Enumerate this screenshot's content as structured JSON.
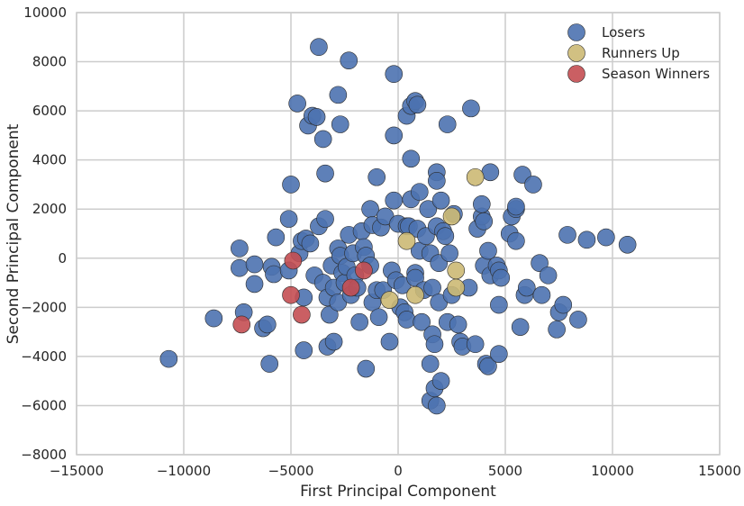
{
  "chart_data": {
    "type": "scatter",
    "xlabel": "First Principal Component",
    "ylabel": "Second Principal Component",
    "xlim": [
      -15000,
      15000
    ],
    "ylim": [
      -8000,
      10000
    ],
    "xticks": [
      -15000,
      -10000,
      -5000,
      0,
      5000,
      10000,
      15000
    ],
    "yticks": [
      -8000,
      -6000,
      -4000,
      -2000,
      0,
      2000,
      4000,
      6000,
      8000,
      10000
    ],
    "grid": true,
    "legend_position": "top-right",
    "series": [
      {
        "name": "Losers",
        "color": "#4c72b0",
        "points": [
          [
            -10700,
            -4100
          ],
          [
            -8600,
            -2450
          ],
          [
            -7400,
            400
          ],
          [
            -7400,
            -400
          ],
          [
            -7200,
            -2200
          ],
          [
            -6700,
            -250
          ],
          [
            -6700,
            -1050
          ],
          [
            -6300,
            -2850
          ],
          [
            -6100,
            -2700
          ],
          [
            -6000,
            -4300
          ],
          [
            -5900,
            -350
          ],
          [
            -5800,
            -650
          ],
          [
            -5700,
            850
          ],
          [
            -5100,
            1600
          ],
          [
            -5100,
            -500
          ],
          [
            -5000,
            3000
          ],
          [
            -4700,
            6300
          ],
          [
            -4600,
            200
          ],
          [
            -4500,
            700
          ],
          [
            -4400,
            -1600
          ],
          [
            -4400,
            -3750
          ],
          [
            -4300,
            800
          ],
          [
            -4200,
            5400
          ],
          [
            -4100,
            600
          ],
          [
            -4000,
            5800
          ],
          [
            -3900,
            -700
          ],
          [
            -3800,
            5750
          ],
          [
            -3700,
            8600
          ],
          [
            -3700,
            1300
          ],
          [
            -3500,
            4850
          ],
          [
            -3500,
            -1000
          ],
          [
            -3400,
            3450
          ],
          [
            -3400,
            1600
          ],
          [
            -3300,
            -3600
          ],
          [
            -3300,
            -1600
          ],
          [
            -3200,
            -2300
          ],
          [
            -3100,
            -300
          ],
          [
            -3000,
            -3400
          ],
          [
            -3000,
            -1200
          ],
          [
            -2800,
            -1800
          ],
          [
            -2800,
            6650
          ],
          [
            -2800,
            400
          ],
          [
            -2700,
            100
          ],
          [
            -2700,
            5450
          ],
          [
            -2600,
            -600
          ],
          [
            -2500,
            -1000
          ],
          [
            -2400,
            -350
          ],
          [
            -2300,
            8050
          ],
          [
            -2300,
            950
          ],
          [
            -2200,
            -1500
          ],
          [
            -2100,
            200
          ],
          [
            -2000,
            -700
          ],
          [
            -1900,
            -1200
          ],
          [
            -1800,
            -2600
          ],
          [
            -1700,
            1100
          ],
          [
            -1600,
            450
          ],
          [
            -1500,
            -4500
          ],
          [
            -1500,
            100
          ],
          [
            -1300,
            2000
          ],
          [
            -1300,
            -300
          ],
          [
            -1200,
            1350
          ],
          [
            -1200,
            -1800
          ],
          [
            -1000,
            3300
          ],
          [
            -1000,
            -1300
          ],
          [
            -900,
            -2400
          ],
          [
            -800,
            1250
          ],
          [
            -700,
            -1300
          ],
          [
            -600,
            1700
          ],
          [
            -400,
            -3400
          ],
          [
            -300,
            -500
          ],
          [
            -200,
            5000
          ],
          [
            -200,
            2350
          ],
          [
            -200,
            7500
          ],
          [
            -100,
            -900
          ],
          [
            0,
            1400
          ],
          [
            100,
            -2000
          ],
          [
            200,
            -1100
          ],
          [
            300,
            -2200
          ],
          [
            400,
            1300
          ],
          [
            400,
            -2500
          ],
          [
            400,
            5800
          ],
          [
            500,
            1300
          ],
          [
            600,
            2400
          ],
          [
            600,
            6200
          ],
          [
            600,
            4050
          ],
          [
            800,
            6400
          ],
          [
            800,
            -600
          ],
          [
            800,
            -800
          ],
          [
            900,
            6250
          ],
          [
            900,
            1200
          ],
          [
            1000,
            2700
          ],
          [
            1000,
            300
          ],
          [
            1100,
            -2600
          ],
          [
            1200,
            -1300
          ],
          [
            1300,
            900
          ],
          [
            1400,
            2000
          ],
          [
            1500,
            200
          ],
          [
            1500,
            -4300
          ],
          [
            1500,
            -5800
          ],
          [
            1600,
            -1200
          ],
          [
            1600,
            -3100
          ],
          [
            1700,
            -5300
          ],
          [
            1700,
            -3500
          ],
          [
            1800,
            3500
          ],
          [
            1800,
            3150
          ],
          [
            1800,
            1300
          ],
          [
            1800,
            -6000
          ],
          [
            1900,
            -200
          ],
          [
            1900,
            -1800
          ],
          [
            2000,
            2350
          ],
          [
            2000,
            -5000
          ],
          [
            2100,
            1100
          ],
          [
            2200,
            900
          ],
          [
            2300,
            -2600
          ],
          [
            2300,
            5450
          ],
          [
            2400,
            200
          ],
          [
            2500,
            -1500
          ],
          [
            2600,
            1800
          ],
          [
            2800,
            -2700
          ],
          [
            2900,
            -3400
          ],
          [
            3000,
            -3600
          ],
          [
            3300,
            -1200
          ],
          [
            3400,
            6100
          ],
          [
            3600,
            -3500
          ],
          [
            3700,
            1200
          ],
          [
            3900,
            1700
          ],
          [
            3900,
            2200
          ],
          [
            4000,
            1500
          ],
          [
            4000,
            -300
          ],
          [
            4100,
            -4300
          ],
          [
            4200,
            300
          ],
          [
            4200,
            -4400
          ],
          [
            4300,
            3500
          ],
          [
            4300,
            -700
          ],
          [
            4600,
            -300
          ],
          [
            4700,
            -1900
          ],
          [
            4700,
            -3900
          ],
          [
            4700,
            -500
          ],
          [
            4800,
            -800
          ],
          [
            5200,
            1000
          ],
          [
            5300,
            1700
          ],
          [
            5500,
            2000
          ],
          [
            5500,
            2100
          ],
          [
            5500,
            700
          ],
          [
            5700,
            -2800
          ],
          [
            5800,
            3400
          ],
          [
            5900,
            -1500
          ],
          [
            6000,
            -1200
          ],
          [
            6300,
            3000
          ],
          [
            6600,
            -200
          ],
          [
            6700,
            -1500
          ],
          [
            7000,
            -700
          ],
          [
            7400,
            -2900
          ],
          [
            7500,
            -2200
          ],
          [
            7700,
            -1900
          ],
          [
            7900,
            950
          ],
          [
            8400,
            -2500
          ],
          [
            8800,
            750
          ],
          [
            9700,
            850
          ],
          [
            10700,
            550
          ]
        ]
      },
      {
        "name": "Runners Up",
        "color": "#ccb974",
        "points": [
          [
            -400,
            -1700
          ],
          [
            400,
            700
          ],
          [
            800,
            -1500
          ],
          [
            2500,
            1700
          ],
          [
            2700,
            -500
          ],
          [
            2700,
            -1200
          ],
          [
            3600,
            3300
          ]
        ]
      },
      {
        "name": "Season Winners",
        "color": "#c44e52",
        "points": [
          [
            -7300,
            -2700
          ],
          [
            -4900,
            -100
          ],
          [
            -5000,
            -1500
          ],
          [
            -4500,
            -2300
          ],
          [
            -2200,
            -1200
          ],
          [
            -1600,
            -500
          ]
        ]
      }
    ]
  }
}
